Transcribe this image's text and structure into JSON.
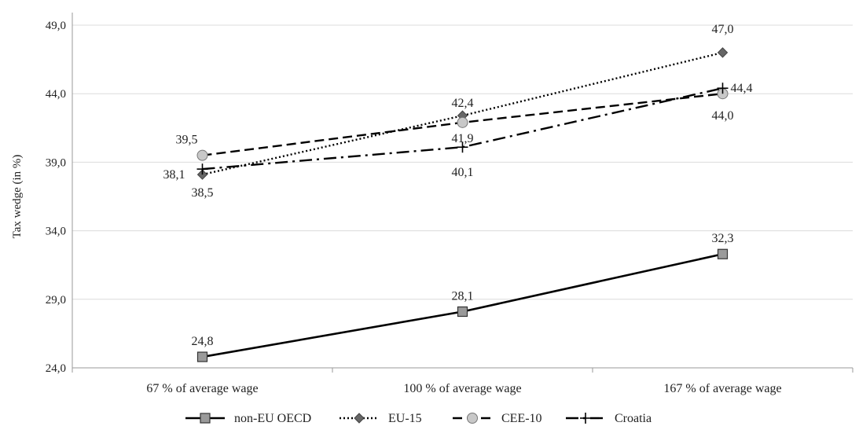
{
  "chart_data": {
    "type": "line",
    "ylabel": "Tax wedge  (in %)",
    "xlabel": "",
    "ylim": [
      24.0,
      49.0
    ],
    "yticks": [
      "24,0",
      "29,0",
      "34,0",
      "39,0",
      "44,0",
      "49,0"
    ],
    "categories": [
      "67 % of average wage",
      "100 % of average wage",
      "167 % of average wage"
    ],
    "grid": "horizontal",
    "legend_position": "bottom",
    "series": [
      {
        "name": "non-EU OECD",
        "values": [
          24.8,
          28.1,
          32.3
        ],
        "labels": [
          "24,8",
          "28,1",
          "32,3"
        ],
        "color": "#000000",
        "marker_color": "#9a9a9a",
        "line_style": "solid",
        "marker": "square"
      },
      {
        "name": "EU-15",
        "values": [
          38.1,
          42.4,
          47.0
        ],
        "labels": [
          "38,1",
          "42,4",
          "47,0"
        ],
        "color": "#000000",
        "marker_color": "#666666",
        "line_style": "dotted",
        "marker": "diamond"
      },
      {
        "name": "CEE-10",
        "values": [
          39.5,
          41.9,
          44.0
        ],
        "labels": [
          "39,5",
          "41,9",
          "44,0"
        ],
        "color": "#000000",
        "marker_color": "#c8c8c8",
        "line_style": "dashed",
        "marker": "circle"
      },
      {
        "name": "Croatia",
        "values": [
          38.5,
          40.1,
          44.4
        ],
        "labels": [
          "38,5",
          "40,1",
          "44,4"
        ],
        "color": "#000000",
        "marker_color": "#000000",
        "line_style": "dashdot",
        "marker": "plus"
      }
    ]
  }
}
